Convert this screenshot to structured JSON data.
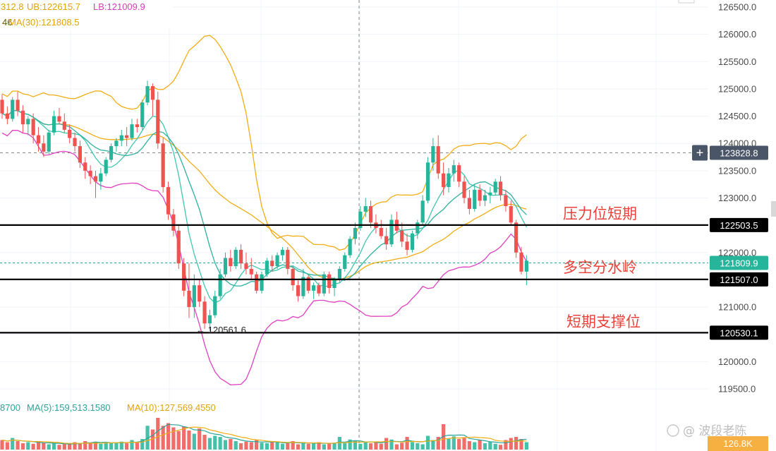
{
  "chart_data": {
    "type": "candlestick",
    "price_axis": {
      "ylim": [
        119300,
        126650
      ],
      "ticks": [
        119500,
        120000,
        120500,
        121000,
        121500,
        122000,
        122500,
        123000,
        123500,
        124000,
        124500,
        125000,
        125500,
        126000,
        126500
      ],
      "tick_labels": [
        "119500.0",
        "120000.0",
        "120500.0",
        "121000.0",
        "121500.0",
        "122000.0",
        "122500.0",
        "123000.0",
        "123500.0",
        "124000.0",
        "124500.0",
        "125000.0",
        "125500.0",
        "126000.0",
        "126500.0"
      ]
    },
    "legend": {
      "boll_mid": "312.8",
      "boll_ub": "UB:122615.7",
      "boll_lb": "LB:121009.9",
      "ma30_line": "MA(30):121808.5",
      "fragment": "46"
    },
    "volume_legend": {
      "fragment": "8700",
      "ma5": "MA(5):159,513.1580",
      "ma10": "MA(10):127,569.4550",
      "last_volume": "126.8K"
    },
    "horizontal_levels": [
      {
        "value": 122503.5,
        "label": "122503.5",
        "annotation": "压力位短期"
      },
      {
        "value": 121507.0,
        "label": "121507.0",
        "annotation": "多空分水岭"
      },
      {
        "value": 120530.1,
        "label": "120530.1",
        "annotation": "短期支撑位"
      }
    ],
    "crosshair": {
      "price": 123828.8,
      "label": "123828.8",
      "plus": "+"
    },
    "current_price": {
      "value": 121809.9,
      "label": "121809.9"
    },
    "low_marker": {
      "value": 120561.6,
      "label": "← 120561.6"
    },
    "candles": [
      [
        124800,
        124900,
        124450,
        124550
      ],
      [
        124550,
        124680,
        124350,
        124450
      ],
      [
        124450,
        124850,
        124400,
        124800
      ],
      [
        124800,
        124950,
        124500,
        124600
      ],
      [
        124600,
        124700,
        124200,
        124350
      ],
      [
        124350,
        124500,
        124150,
        124450
      ],
      [
        124450,
        124550,
        124000,
        124150
      ],
      [
        124150,
        124300,
        123850,
        124000
      ],
      [
        124000,
        124150,
        123750,
        123850
      ],
      [
        123850,
        124250,
        123800,
        124200
      ],
      [
        124200,
        124600,
        124150,
        124500
      ],
      [
        124500,
        124650,
        124350,
        124400
      ],
      [
        124400,
        124550,
        124200,
        124250
      ],
      [
        124250,
        124350,
        124000,
        124100
      ],
      [
        124100,
        124200,
        123850,
        123950
      ],
      [
        123950,
        124050,
        123550,
        123650
      ],
      [
        123650,
        123750,
        123350,
        123500
      ],
      [
        123500,
        123600,
        123250,
        123400
      ],
      [
        123400,
        123500,
        123000,
        123300
      ],
      [
        123300,
        123550,
        123150,
        123450
      ],
      [
        123450,
        123750,
        123400,
        123700
      ],
      [
        123700,
        124000,
        123650,
        123950
      ],
      [
        123950,
        124100,
        123850,
        124050
      ],
      [
        124050,
        124250,
        123950,
        124150
      ],
      [
        124150,
        124300,
        123950,
        124100
      ],
      [
        124100,
        124450,
        124050,
        124350
      ],
      [
        124350,
        124450,
        124200,
        124300
      ],
      [
        124300,
        124800,
        124250,
        124750
      ],
      [
        124750,
        125150,
        124700,
        125050
      ],
      [
        125050,
        125100,
        124500,
        124800
      ],
      [
        124800,
        124950,
        123900,
        124000
      ],
      [
        124000,
        124100,
        123100,
        123200
      ],
      [
        123200,
        123300,
        122600,
        122700
      ],
      [
        122700,
        122800,
        122300,
        122400
      ],
      [
        122400,
        122500,
        121700,
        121800
      ],
      [
        121800,
        121900,
        121200,
        121300
      ],
      [
        121300,
        121800,
        120800,
        121000
      ],
      [
        121000,
        121600,
        120800,
        121400
      ],
      [
        121400,
        121500,
        121000,
        121100
      ],
      [
        121100,
        121200,
        120600,
        120700
      ],
      [
        120700,
        120950,
        120561.6,
        120850
      ],
      [
        120850,
        121300,
        120800,
        121200
      ],
      [
        121200,
        121700,
        121150,
        121600
      ],
      [
        121600,
        122000,
        121550,
        121900
      ],
      [
        121900,
        122050,
        121650,
        121750
      ],
      [
        121750,
        122100,
        121700,
        122050
      ],
      [
        122050,
        122150,
        121700,
        121800
      ],
      [
        121800,
        122000,
        121600,
        121700
      ],
      [
        121700,
        121900,
        121500,
        121600
      ],
      [
        121600,
        121650,
        121250,
        121300
      ],
      [
        121300,
        121650,
        121250,
        121600
      ],
      [
        121600,
        121900,
        121550,
        121850
      ],
      [
        121850,
        121950,
        121650,
        121750
      ],
      [
        121750,
        122000,
        121700,
        121950
      ],
      [
        121950,
        122100,
        121850,
        122050
      ],
      [
        122050,
        122100,
        121600,
        121700
      ],
      [
        121700,
        121750,
        121300,
        121400
      ],
      [
        121400,
        121500,
        121100,
        121200
      ],
      [
        121200,
        121700,
        121150,
        121550
      ],
      [
        121550,
        121600,
        121250,
        121300
      ],
      [
        121300,
        121450,
        121150,
        121400
      ],
      [
        121400,
        121450,
        121200,
        121250
      ],
      [
        121250,
        121650,
        121200,
        121600
      ],
      [
        121600,
        121650,
        121250,
        121350
      ],
      [
        121350,
        121550,
        121200,
        121500
      ],
      [
        121500,
        121750,
        121450,
        121700
      ],
      [
        121700,
        122000,
        121650,
        121950
      ],
      [
        121950,
        122300,
        121900,
        122250
      ],
      [
        122250,
        122550,
        122150,
        122450
      ],
      [
        122450,
        122850,
        122400,
        122750
      ],
      [
        122750,
        123000,
        122650,
        122850
      ],
      [
        122850,
        122950,
        122450,
        122550
      ],
      [
        122550,
        122700,
        122350,
        122450
      ],
      [
        122450,
        122600,
        122250,
        122300
      ],
      [
        122300,
        122450,
        122050,
        122150
      ],
      [
        122150,
        122700,
        122100,
        122600
      ],
      [
        122600,
        122750,
        122350,
        122400
      ],
      [
        122400,
        122550,
        122100,
        122200
      ],
      [
        122200,
        122350,
        121950,
        122050
      ],
      [
        122050,
        122400,
        122000,
        122350
      ],
      [
        122350,
        122600,
        122250,
        122550
      ],
      [
        122550,
        123050,
        122500,
        122950
      ],
      [
        122950,
        123750,
        122900,
        123650
      ],
      [
        123650,
        124100,
        123500,
        123950
      ],
      [
        123950,
        124150,
        123350,
        123450
      ],
      [
        123450,
        123650,
        123050,
        123200
      ],
      [
        123200,
        123550,
        123100,
        123450
      ],
      [
        123450,
        123700,
        123300,
        123600
      ],
      [
        123600,
        123650,
        123200,
        123300
      ],
      [
        123300,
        123400,
        122900,
        123000
      ],
      [
        123000,
        123150,
        122700,
        122800
      ],
      [
        122800,
        123250,
        122750,
        123150
      ],
      [
        123150,
        123250,
        122850,
        122950
      ],
      [
        122950,
        123150,
        122850,
        123050
      ],
      [
        123050,
        123200,
        122900,
        123100
      ],
      [
        123100,
        123350,
        123050,
        123300
      ],
      [
        123300,
        123400,
        122950,
        123050
      ],
      [
        123050,
        123150,
        122750,
        122850
      ],
      [
        122850,
        122950,
        122500,
        122550
      ],
      [
        122550,
        122600,
        121900,
        122000
      ],
      [
        122000,
        122100,
        121600,
        121650
      ],
      [
        121650,
        121950,
        121400,
        121850
      ]
    ],
    "volumes": [
      18,
      14,
      22,
      16,
      12,
      14,
      11,
      15,
      13,
      10,
      12,
      9,
      11,
      10,
      14,
      12,
      16,
      13,
      15,
      11,
      14,
      12,
      13,
      15,
      12,
      18,
      13,
      20,
      45,
      38,
      60,
      45,
      50,
      42,
      35,
      44,
      36,
      30,
      40,
      28,
      22,
      26,
      24,
      18,
      20,
      16,
      12,
      15,
      14,
      18,
      13,
      12,
      15,
      14,
      11,
      12,
      16,
      10,
      13,
      11,
      12,
      14,
      10,
      11,
      13,
      24,
      12,
      19,
      16,
      11,
      14,
      12,
      15,
      11,
      22,
      19,
      10,
      13,
      24,
      14,
      12,
      10,
      26,
      18,
      24,
      48,
      21,
      25,
      20,
      23,
      16,
      14,
      18,
      12,
      15,
      11,
      9,
      18,
      22,
      24,
      20,
      14
    ]
  }
}
